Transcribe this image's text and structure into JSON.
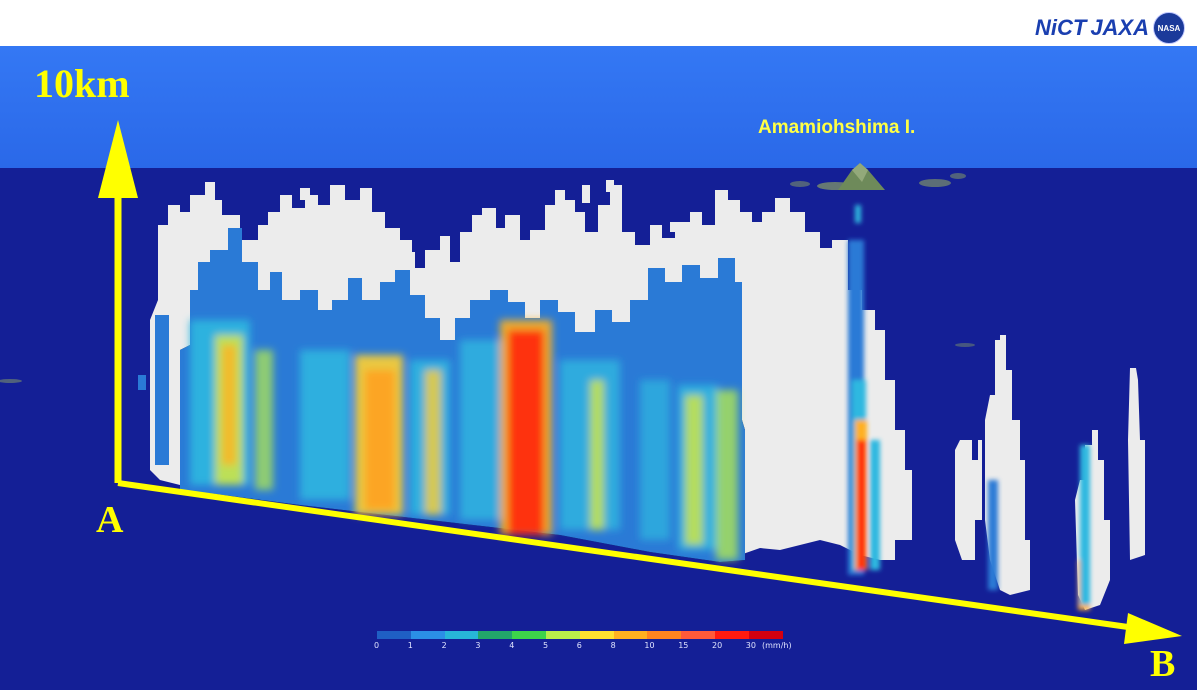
{
  "header": {
    "logo": {
      "nict": "NiCT",
      "jaxa": "JAXA",
      "nasa": "NASA"
    }
  },
  "labels": {
    "height": "10km",
    "point_a": "A",
    "point_b": "B",
    "island": "Amamiohshima I."
  },
  "colorbar": {
    "ticks": [
      "0",
      "1",
      "2",
      "3",
      "4",
      "5",
      "6",
      "8",
      "10",
      "15",
      "20",
      "30"
    ],
    "unit": "(mm/h)",
    "colors": [
      "#1f5fc4",
      "#2b8fe6",
      "#27b6d8",
      "#22a66a",
      "#3dd44a",
      "#b8ee4a",
      "#ffe030",
      "#ffb020",
      "#ff8420",
      "#ff5a3a",
      "#ff1a10",
      "#d40010"
    ]
  },
  "colors": {
    "sky": "#2d6ff0",
    "ground": "#141f96",
    "axis": "#ffff00",
    "cloud": "#eeeeee"
  }
}
